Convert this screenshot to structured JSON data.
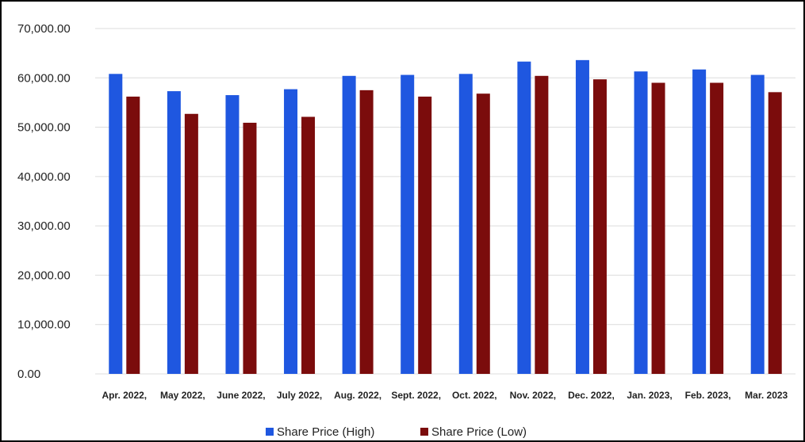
{
  "chart_data": {
    "type": "bar",
    "title": "",
    "xlabel": "",
    "ylabel": "",
    "categories": [
      "Apr. 2022,",
      "May 2022,",
      "June 2022,",
      "July 2022,",
      "Aug. 2022,",
      "Sept. 2022,",
      "Oct. 2022,",
      "Nov. 2022,",
      "Dec. 2022,",
      "Jan. 2023,",
      "Feb. 2023,",
      "Mar. 2023"
    ],
    "series": [
      {
        "name": "Share Price (High)",
        "color": "#1f57e0",
        "values": [
          60800,
          57300,
          56500,
          57700,
          60400,
          60600,
          60800,
          63300,
          63600,
          61300,
          61700,
          60600
        ]
      },
      {
        "name": "Share Price (Low)",
        "color": "#7b0c0c",
        "values": [
          56200,
          52700,
          50900,
          52100,
          57500,
          56200,
          56800,
          60400,
          59700,
          59000,
          59000,
          57100
        ]
      }
    ],
    "ylim": [
      0,
      70000
    ],
    "yticks": [
      "0.00",
      "10,000.00",
      "20,000.00",
      "30,000.00",
      "40,000.00",
      "50,000.00",
      "60,000.00",
      "70,000.00"
    ],
    "grid": true,
    "legend_position": "bottom"
  }
}
